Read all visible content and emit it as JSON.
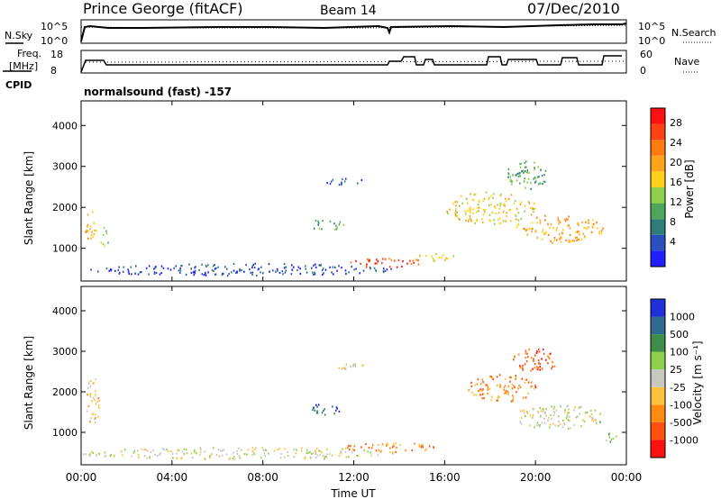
{
  "header": {
    "station": "Prince George (fitACF)",
    "beam": "Beam 14",
    "date": "07/Dec/2010"
  },
  "noise_panel": {
    "left_label": "N.Sky",
    "right_label": "N.Search",
    "left_ticks": [
      "10^5",
      "10^0"
    ],
    "right_ticks": [
      "10^5",
      "10^0"
    ]
  },
  "freq_panel": {
    "left_label_1": "Freq.",
    "left_label_2": "[MHz]",
    "left_ticks": [
      "18",
      "8"
    ],
    "right_label": "Nave",
    "right_ticks": [
      "60",
      "0"
    ],
    "cpid_label": "CPID",
    "cpid_text": "normalsound (fast) -157"
  },
  "chart_data": [
    {
      "type": "heatmap",
      "title": "",
      "xlabel": "",
      "ylabel": "Slant Range [km]",
      "yticks": [
        "1000",
        "2000",
        "3000",
        "4000"
      ],
      "colorbar_label": "Power [dB]",
      "colorbar_ticks": [
        "4",
        "8",
        "12",
        "16",
        "20",
        "24",
        "28"
      ],
      "colorbar_colors": [
        "#1f1fff",
        "#2a4fbf",
        "#2e7d78",
        "#4fa65a",
        "#8fd14a",
        "#ffd11a",
        "#ffa31a",
        "#ff7a10",
        "#ff4010",
        "#ff1010"
      ],
      "blobs": [
        {
          "t_hr": 0.4,
          "range_km": 1500,
          "dt": 0.5,
          "dr": 900,
          "level": 6
        },
        {
          "t_hr": 1.0,
          "range_km": 1300,
          "dt": 0.4,
          "dr": 600,
          "level": 4
        },
        {
          "t_hr": 7.0,
          "range_km": 500,
          "dt": 14.0,
          "dr": 300,
          "level": 1
        },
        {
          "t_hr": 13.5,
          "range_km": 650,
          "dt": 3.5,
          "dr": 250,
          "level": 8
        },
        {
          "t_hr": 11.5,
          "range_km": 2650,
          "dt": 2.0,
          "dr": 150,
          "level": 1
        },
        {
          "t_hr": 10.8,
          "range_km": 1600,
          "dt": 1.5,
          "dr": 300,
          "level": 3
        },
        {
          "t_hr": 15.5,
          "range_km": 800,
          "dt": 2.0,
          "dr": 200,
          "level": 5
        },
        {
          "t_hr": 18.0,
          "range_km": 2000,
          "dt": 4.0,
          "dr": 800,
          "level": 5
        },
        {
          "t_hr": 21.0,
          "range_km": 1500,
          "dt": 4.0,
          "dr": 700,
          "level": 6
        },
        {
          "t_hr": 19.5,
          "range_km": 2800,
          "dt": 2.0,
          "dr": 700,
          "level": 3
        }
      ]
    },
    {
      "type": "heatmap",
      "title": "",
      "xlabel": "Time UT",
      "ylabel": "Slant Range [km]",
      "yticks": [
        "1000",
        "2000",
        "3000",
        "4000"
      ],
      "xticks": [
        "00:00",
        "04:00",
        "08:00",
        "12:00",
        "16:00",
        "20:00",
        "00:00"
      ],
      "colorbar_label": "Velocity  [m s⁻¹]",
      "colorbar_ticks": [
        "1000",
        "500",
        "100",
        "25",
        "-25",
        "-100",
        "-500",
        "-1000"
      ],
      "colorbar_colors": [
        "#1f2fd9",
        "#2e6b8f",
        "#3e8e4a",
        "#8fd14a",
        "#c8c8c0",
        "#ffc040",
        "#ff8a10",
        "#ff5010",
        "#ff1010"
      ],
      "blobs": [
        {
          "t_hr": 0.5,
          "range_km": 1800,
          "dt": 0.6,
          "dr": 1200,
          "level": 5
        },
        {
          "t_hr": 7.0,
          "range_km": 500,
          "dt": 14.0,
          "dr": 300,
          "level": 4
        },
        {
          "t_hr": 11.5,
          "range_km": 2650,
          "dt": 2.0,
          "dr": 150,
          "level": 4
        },
        {
          "t_hr": 10.8,
          "range_km": 1600,
          "dt": 1.5,
          "dr": 300,
          "level": 1
        },
        {
          "t_hr": 13.5,
          "range_km": 650,
          "dt": 4.0,
          "dr": 250,
          "level": 6
        },
        {
          "t_hr": 18.5,
          "range_km": 2100,
          "dt": 3.0,
          "dr": 700,
          "level": 6
        },
        {
          "t_hr": 21.0,
          "range_km": 1400,
          "dt": 4.0,
          "dr": 600,
          "level": 4
        },
        {
          "t_hr": 20.0,
          "range_km": 2800,
          "dt": 2.0,
          "dr": 600,
          "level": 7
        },
        {
          "t_hr": 23.3,
          "range_km": 900,
          "dt": 0.6,
          "dr": 300,
          "level": 3
        }
      ]
    }
  ]
}
